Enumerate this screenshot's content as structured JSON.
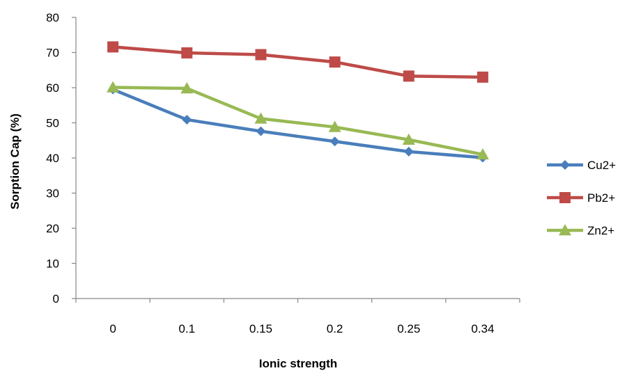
{
  "chart_data": {
    "type": "line",
    "title": "",
    "xlabel": "Ionic strength",
    "ylabel": "Sorption Cap (%)",
    "categories": [
      "0",
      "0.1",
      "0.15",
      "0.2",
      "0.25",
      "0.34"
    ],
    "ylim": [
      0,
      80
    ],
    "yticks": [
      0,
      10,
      20,
      30,
      40,
      50,
      60,
      70,
      80
    ],
    "grid": false,
    "legend": "right",
    "series": [
      {
        "name": "Cu2+",
        "color": "#4a7ebb",
        "marker": "diamond",
        "values": [
          59.5,
          50.9,
          47.6,
          44.7,
          41.8,
          40.1
        ]
      },
      {
        "name": "Pb2+",
        "color": "#be4b48",
        "marker": "square",
        "values": [
          71.6,
          69.9,
          69.4,
          67.3,
          63.3,
          63.0
        ]
      },
      {
        "name": "Zn2+",
        "color": "#98b954",
        "marker": "triangle",
        "values": [
          60.1,
          59.8,
          51.2,
          48.8,
          45.2,
          41.0
        ]
      }
    ]
  }
}
